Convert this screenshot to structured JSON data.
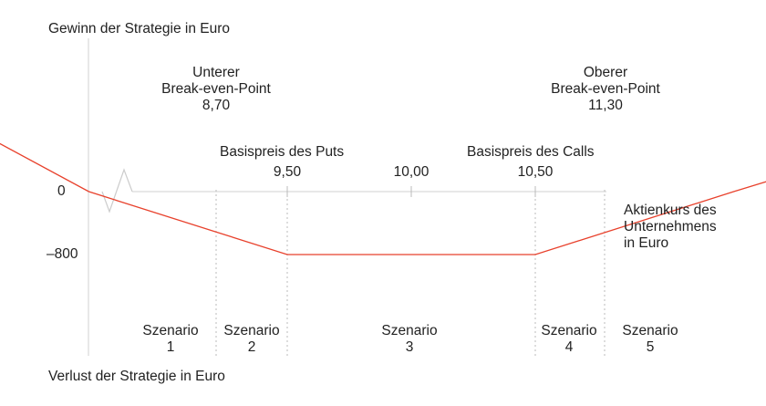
{
  "chart_data": {
    "type": "line",
    "ylabel_top": "Gewinn der Strategie in Euro",
    "ylabel_bottom": "Verlust der Strategie in Euro",
    "xlabel": [
      "Aktienkurs des",
      "Unternehmens",
      "in Euro"
    ],
    "y_ticks": [
      "0",
      "–800"
    ],
    "x_ticks": [
      "9,50",
      "10,00",
      "10,50"
    ],
    "series": [
      {
        "x": [
          8.0,
          8.7,
          9.5,
          10.5,
          11.3,
          12.4
        ],
        "y": [
          1190,
          0,
          -800,
          -800,
          0,
          1060
        ],
        "color": "#e8412c"
      }
    ],
    "ylim": [
      -2100,
      2050
    ],
    "annotations": {
      "lower_bep": [
        "Unterer",
        "Break-even-Point",
        "8,70"
      ],
      "upper_bep": [
        "Oberer",
        "Break-even-Point",
        "11,30"
      ],
      "put_strike": "Basispreis des Puts",
      "call_strike": "Basispreis des Calls"
    },
    "scenarios": [
      {
        "label": "Szenario",
        "num": "1"
      },
      {
        "label": "Szenario",
        "num": "2"
      },
      {
        "label": "Szenario",
        "num": "3"
      },
      {
        "label": "Szenario",
        "num": "4"
      },
      {
        "label": "Szenario",
        "num": "5"
      }
    ],
    "colors": {
      "line": "#e8412c",
      "axis": "#cccccc",
      "guide": "#bbbbbb"
    }
  }
}
